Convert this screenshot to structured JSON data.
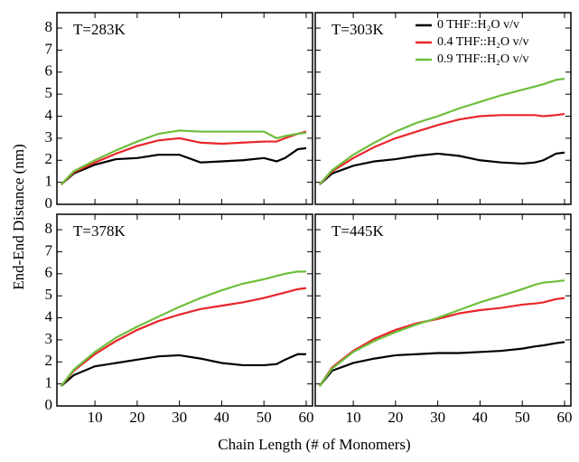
{
  "ylabel": "End-End Distance (nm)",
  "xlabel": "Chain Length (# of Monomers)",
  "chart_data": [
    {
      "type": "line",
      "title": "T=283K",
      "x": [
        2,
        5,
        10,
        15,
        20,
        25,
        30,
        35,
        40,
        45,
        50,
        53,
        55,
        58,
        60
      ],
      "xlim": [
        1,
        61.5
      ],
      "ylim": [
        0,
        8.7
      ],
      "xticks": [
        10,
        20,
        30,
        40,
        50,
        60
      ],
      "yticks": [
        0,
        1,
        2,
        3,
        4,
        5,
        6,
        7,
        8
      ],
      "series": [
        {
          "color": "#000000",
          "values": [
            0.9,
            1.4,
            1.8,
            2.05,
            2.1,
            2.25,
            2.25,
            1.9,
            1.95,
            2.0,
            2.1,
            1.95,
            2.1,
            2.5,
            2.55
          ]
        },
        {
          "color": "#e8262a",
          "values": [
            0.9,
            1.45,
            1.9,
            2.3,
            2.65,
            2.9,
            3.0,
            2.8,
            2.75,
            2.8,
            2.85,
            2.85,
            3.0,
            3.2,
            3.3
          ]
        },
        {
          "color": "#6dbf3c",
          "values": [
            0.9,
            1.5,
            2.0,
            2.45,
            2.85,
            3.2,
            3.35,
            3.3,
            3.3,
            3.3,
            3.3,
            3.0,
            3.1,
            3.2,
            3.25
          ]
        }
      ]
    },
    {
      "type": "line",
      "title": "T=303K",
      "legend": "upper right",
      "x": [
        2,
        5,
        10,
        15,
        20,
        25,
        30,
        35,
        40,
        45,
        50,
        53,
        55,
        58,
        60
      ],
      "xlim": [
        1,
        61.5
      ],
      "ylim": [
        0,
        8.7
      ],
      "xticks": [
        10,
        20,
        30,
        40,
        50,
        60
      ],
      "yticks": [
        0,
        1,
        2,
        3,
        4,
        5,
        6,
        7,
        8
      ],
      "series": [
        {
          "name": "0 THF::H₂O v/v",
          "color": "#000000",
          "values": [
            0.9,
            1.4,
            1.75,
            1.95,
            2.05,
            2.2,
            2.3,
            2.2,
            2.0,
            1.9,
            1.85,
            1.9,
            2.0,
            2.3,
            2.35
          ]
        },
        {
          "name": "0.4 THF::H₂O v/v",
          "color": "#e8262a",
          "values": [
            0.9,
            1.5,
            2.1,
            2.6,
            3.0,
            3.3,
            3.6,
            3.85,
            4.0,
            4.05,
            4.05,
            4.05,
            4.0,
            4.05,
            4.1
          ]
        },
        {
          "name": "0.9 THF::H₂O v/v",
          "color": "#6dbf3c",
          "values": [
            0.9,
            1.55,
            2.25,
            2.8,
            3.3,
            3.7,
            4.0,
            4.35,
            4.65,
            4.95,
            5.2,
            5.35,
            5.45,
            5.65,
            5.7
          ]
        }
      ]
    },
    {
      "type": "line",
      "title": "T=378K",
      "x": [
        2,
        5,
        10,
        15,
        20,
        25,
        30,
        35,
        40,
        45,
        50,
        53,
        55,
        58,
        60
      ],
      "xlim": [
        1,
        61.5
      ],
      "ylim": [
        0,
        8.7
      ],
      "xticks": [
        10,
        20,
        30,
        40,
        50,
        60
      ],
      "yticks": [
        0,
        1,
        2,
        3,
        4,
        5,
        6,
        7,
        8
      ],
      "series": [
        {
          "color": "#000000",
          "values": [
            0.9,
            1.4,
            1.8,
            1.95,
            2.1,
            2.25,
            2.3,
            2.15,
            1.95,
            1.85,
            1.85,
            1.9,
            2.1,
            2.35,
            2.35
          ]
        },
        {
          "color": "#e8262a",
          "values": [
            0.9,
            1.6,
            2.35,
            2.95,
            3.45,
            3.85,
            4.15,
            4.4,
            4.55,
            4.7,
            4.9,
            5.05,
            5.15,
            5.3,
            5.35
          ]
        },
        {
          "color": "#6dbf3c",
          "values": [
            0.9,
            1.65,
            2.45,
            3.1,
            3.6,
            4.05,
            4.5,
            4.9,
            5.25,
            5.55,
            5.75,
            5.9,
            6.0,
            6.1,
            6.1
          ]
        }
      ]
    },
    {
      "type": "line",
      "title": "T=445K",
      "x": [
        2,
        5,
        10,
        15,
        20,
        25,
        30,
        35,
        40,
        45,
        50,
        53,
        55,
        58,
        60
      ],
      "xlim": [
        1,
        61.5
      ],
      "ylim": [
        0,
        8.7
      ],
      "xticks": [
        10,
        20,
        30,
        40,
        50,
        60
      ],
      "yticks": [
        0,
        1,
        2,
        3,
        4,
        5,
        6,
        7,
        8
      ],
      "series": [
        {
          "color": "#000000",
          "values": [
            0.9,
            1.6,
            1.95,
            2.15,
            2.3,
            2.35,
            2.4,
            2.4,
            2.45,
            2.5,
            2.6,
            2.7,
            2.75,
            2.85,
            2.9
          ]
        },
        {
          "color": "#e8262a",
          "values": [
            0.9,
            1.75,
            2.5,
            3.05,
            3.45,
            3.75,
            3.95,
            4.2,
            4.35,
            4.45,
            4.6,
            4.65,
            4.7,
            4.85,
            4.9
          ]
        },
        {
          "color": "#6dbf3c",
          "values": [
            0.9,
            1.7,
            2.45,
            2.95,
            3.35,
            3.7,
            4.0,
            4.35,
            4.7,
            5.0,
            5.3,
            5.5,
            5.6,
            5.65,
            5.7
          ]
        }
      ]
    }
  ]
}
